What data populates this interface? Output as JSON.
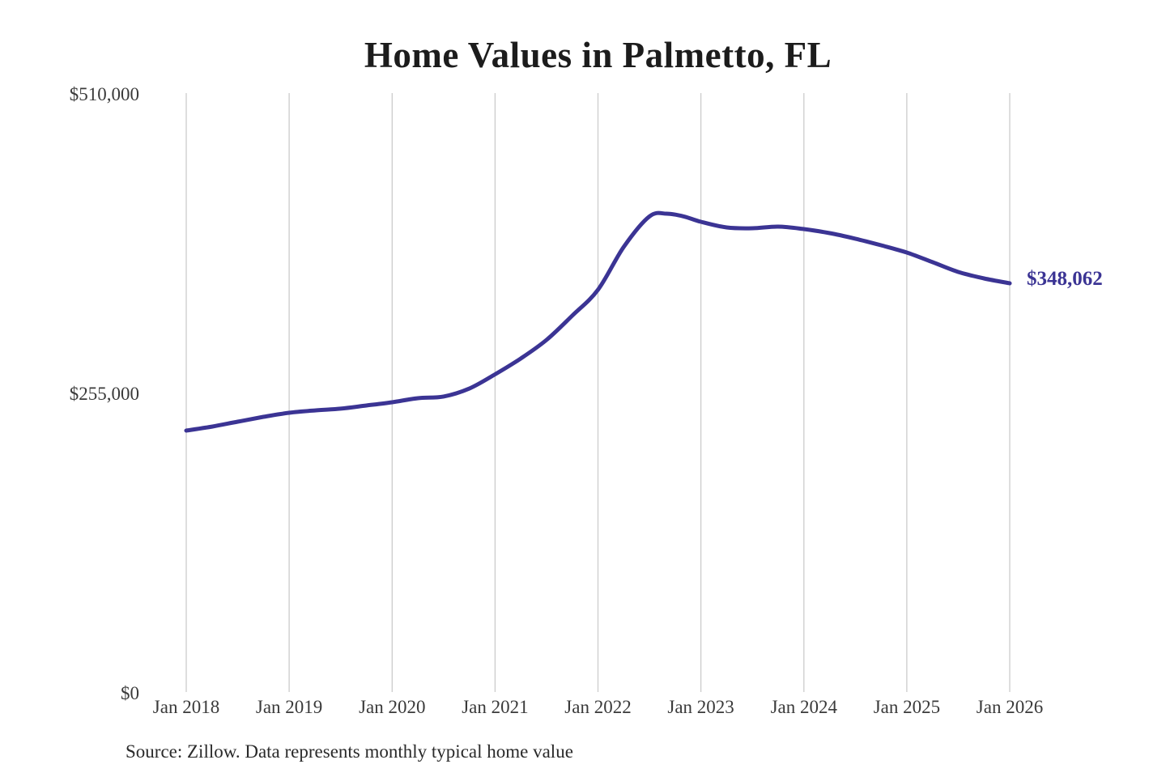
{
  "chart": {
    "title": "Home Values in Palmetto, FL",
    "source": "Source: Zillow. Data represents monthly typical home value"
  },
  "chart_data": {
    "type": "line",
    "title": "Home Values in Palmetto, FL",
    "series_name": "Monthly typical home value",
    "x_unit": "months since Jan 2018",
    "x_ticks": [
      "Jan 2018",
      "Jan 2019",
      "Jan 2020",
      "Jan 2021",
      "Jan 2022",
      "Jan 2023",
      "Jan 2024",
      "Jan 2025",
      "Jan 2026"
    ],
    "x_tick_months": [
      0,
      12,
      24,
      36,
      48,
      60,
      72,
      84,
      96
    ],
    "y_ticks": [
      {
        "value": 0,
        "label": "$0"
      },
      {
        "value": 255000,
        "label": "$255,000"
      },
      {
        "value": 510000,
        "label": "$510,000"
      }
    ],
    "ylim": [
      0,
      510000
    ],
    "grid": "vertical-only",
    "legend": "none",
    "points": [
      [
        0,
        222600
      ],
      [
        3,
        226000
      ],
      [
        6,
        230200
      ],
      [
        9,
        234300
      ],
      [
        12,
        237800
      ],
      [
        15,
        239800
      ],
      [
        18,
        241300
      ],
      [
        21,
        244000
      ],
      [
        24,
        246700
      ],
      [
        27,
        250200
      ],
      [
        30,
        251600
      ],
      [
        33,
        258400
      ],
      [
        36,
        270500
      ],
      [
        39,
        284000
      ],
      [
        42,
        299800
      ],
      [
        45,
        320500
      ],
      [
        48,
        342500
      ],
      [
        51,
        379000
      ],
      [
        54,
        405000
      ],
      [
        56,
        407300
      ],
      [
        58,
        405000
      ],
      [
        60,
        400400
      ],
      [
        63,
        395600
      ],
      [
        66,
        394900
      ],
      [
        69,
        396300
      ],
      [
        72,
        394200
      ],
      [
        75,
        390800
      ],
      [
        78,
        386000
      ],
      [
        81,
        380400
      ],
      [
        84,
        374200
      ],
      [
        87,
        366000
      ],
      [
        90,
        357700
      ],
      [
        93,
        352200
      ],
      [
        96,
        348062
      ]
    ],
    "end_value": 348062,
    "end_label": "$348,062",
    "colors": {
      "line": "#3b3494",
      "end_label": "#3b3494",
      "grid": "#cccccc",
      "title": "#1c1c1c",
      "axis_text": "#3a3a3a",
      "source_text": "#2a2a2a",
      "background": "#ffffff"
    }
  }
}
